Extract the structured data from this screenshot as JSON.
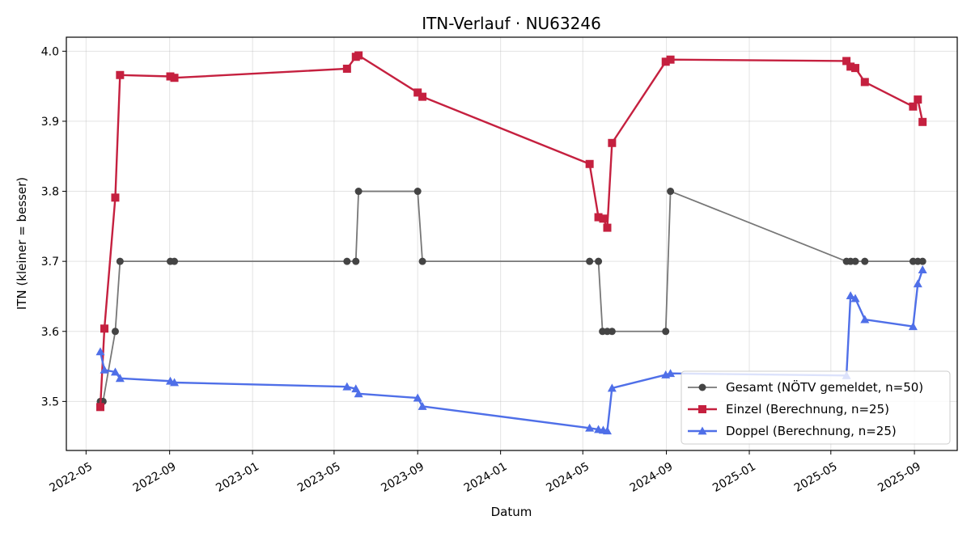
{
  "chart_data": {
    "type": "line",
    "title": "ITN-Verlauf · NU63246",
    "xlabel": "Datum",
    "ylabel": "ITN  (kleiner = besser)",
    "x_type": "date",
    "xlim": [
      "2022-04-02",
      "2025-11-03"
    ],
    "ylim": [
      3.43,
      4.02
    ],
    "x_ticks": [
      {
        "date": "2022-05-01",
        "label": "2022-05"
      },
      {
        "date": "2022-09-01",
        "label": "2022-09"
      },
      {
        "date": "2023-01-01",
        "label": "2023-01"
      },
      {
        "date": "2023-05-01",
        "label": "2023-05"
      },
      {
        "date": "2023-09-01",
        "label": "2023-09"
      },
      {
        "date": "2024-01-01",
        "label": "2024-01"
      },
      {
        "date": "2024-05-01",
        "label": "2024-05"
      },
      {
        "date": "2024-09-01",
        "label": "2024-09"
      },
      {
        "date": "2025-01-01",
        "label": "2025-01"
      },
      {
        "date": "2025-05-01",
        "label": "2025-05"
      },
      {
        "date": "2025-09-01",
        "label": "2025-09"
      }
    ],
    "y_ticks": [
      {
        "value": 3.5,
        "label": "3.5"
      },
      {
        "value": 3.6,
        "label": "3.6"
      },
      {
        "value": 3.7,
        "label": "3.7"
      },
      {
        "value": 3.8,
        "label": "3.8"
      },
      {
        "value": 3.9,
        "label": "3.9"
      },
      {
        "value": 4.0,
        "label": "4.0"
      }
    ],
    "grid": true,
    "legend_position": "lower-right",
    "series": [
      {
        "name": "Gesamt (NÖTV gemeldet, n=50)",
        "color": "#444444",
        "line_color": "#777777",
        "marker": "circle",
        "points": [
          [
            "2022-05-22",
            3.5
          ],
          [
            "2022-05-26",
            3.5
          ],
          [
            "2022-06-13",
            3.6
          ],
          [
            "2022-06-20",
            3.7
          ],
          [
            "2022-09-02",
            3.7
          ],
          [
            "2022-09-08",
            3.7
          ],
          [
            "2023-05-20",
            3.7
          ],
          [
            "2023-06-02",
            3.7
          ],
          [
            "2023-06-06",
            3.8
          ],
          [
            "2023-09-01",
            3.8
          ],
          [
            "2023-09-08",
            3.7
          ],
          [
            "2024-05-11",
            3.7
          ],
          [
            "2024-05-24",
            3.7
          ],
          [
            "2024-05-30",
            3.6
          ],
          [
            "2024-06-06",
            3.6
          ],
          [
            "2024-06-13",
            3.6
          ],
          [
            "2024-08-31",
            3.6
          ],
          [
            "2024-09-07",
            3.8
          ],
          [
            "2025-05-24",
            3.7
          ],
          [
            "2025-05-30",
            3.7
          ],
          [
            "2025-06-06",
            3.7
          ],
          [
            "2025-06-20",
            3.7
          ],
          [
            "2025-08-30",
            3.7
          ],
          [
            "2025-09-06",
            3.7
          ],
          [
            "2025-09-13",
            3.7
          ]
        ]
      },
      {
        "name": "Einzel (Berechnung, n=25)",
        "color": "#c5203f",
        "line_color": "#c5203f",
        "marker": "square",
        "points": [
          [
            "2022-05-22",
            3.492
          ],
          [
            "2022-05-28",
            3.604
          ],
          [
            "2022-06-13",
            3.791
          ],
          [
            "2022-06-20",
            3.966
          ],
          [
            "2022-09-02",
            3.964
          ],
          [
            "2022-09-08",
            3.962
          ],
          [
            "2023-05-20",
            3.975
          ],
          [
            "2023-06-02",
            3.992
          ],
          [
            "2023-06-06",
            3.994
          ],
          [
            "2023-09-01",
            3.941
          ],
          [
            "2023-09-08",
            3.935
          ],
          [
            "2024-05-11",
            3.839
          ],
          [
            "2024-05-24",
            3.763
          ],
          [
            "2024-05-31",
            3.761
          ],
          [
            "2024-06-06",
            3.748
          ],
          [
            "2024-06-13",
            3.869
          ],
          [
            "2024-08-31",
            3.985
          ],
          [
            "2024-09-07",
            3.988
          ],
          [
            "2025-05-24",
            3.986
          ],
          [
            "2025-05-30",
            3.978
          ],
          [
            "2025-06-06",
            3.976
          ],
          [
            "2025-06-20",
            3.956
          ],
          [
            "2025-08-30",
            3.921
          ],
          [
            "2025-09-06",
            3.931
          ],
          [
            "2025-09-13",
            3.899
          ]
        ]
      },
      {
        "name": "Doppel (Berechnung, n=25)",
        "color": "#4f6fe8",
        "line_color": "#4f6fe8",
        "marker": "triangle",
        "points": [
          [
            "2022-05-22",
            3.571
          ],
          [
            "2022-05-28",
            3.545
          ],
          [
            "2022-06-13",
            3.542
          ],
          [
            "2022-06-20",
            3.533
          ],
          [
            "2022-09-02",
            3.529
          ],
          [
            "2022-09-08",
            3.527
          ],
          [
            "2023-05-20",
            3.521
          ],
          [
            "2023-06-02",
            3.518
          ],
          [
            "2023-06-06",
            3.511
          ],
          [
            "2023-09-01",
            3.505
          ],
          [
            "2023-09-08",
            3.493
          ],
          [
            "2024-05-11",
            3.462
          ],
          [
            "2024-05-24",
            3.46
          ],
          [
            "2024-05-31",
            3.459
          ],
          [
            "2024-06-06",
            3.458
          ],
          [
            "2024-06-13",
            3.519
          ],
          [
            "2024-08-31",
            3.538
          ],
          [
            "2024-09-07",
            3.54
          ],
          [
            "2025-05-24",
            3.537
          ],
          [
            "2025-05-30",
            3.651
          ],
          [
            "2025-06-06",
            3.647
          ],
          [
            "2025-06-20",
            3.617
          ],
          [
            "2025-08-30",
            3.607
          ],
          [
            "2025-09-06",
            3.668
          ],
          [
            "2025-09-13",
            3.688
          ]
        ]
      }
    ]
  }
}
